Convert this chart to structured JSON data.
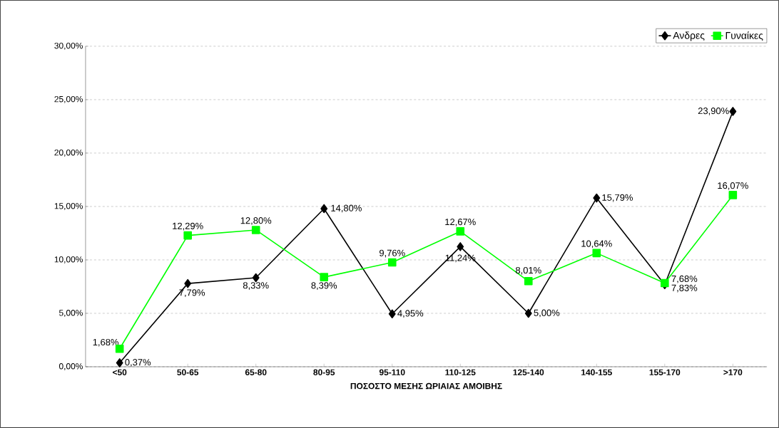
{
  "chart_data": {
    "type": "line",
    "xlabel": "ΠΟΣΟΣΤΟ ΜΕΣΗΣ ΩΡΙΑΙΑΣ ΑΜΟΙΒΗΣ",
    "categories": [
      "<50",
      "50-65",
      "65-80",
      "80-95",
      "95-110",
      "110-125",
      "125-140",
      "140-155",
      "155-170",
      ">170"
    ],
    "series": [
      {
        "name": "Ανδρες",
        "color": "#000000",
        "marker": "diamond",
        "values": [
          0.37,
          7.79,
          8.33,
          14.8,
          4.95,
          11.24,
          5.0,
          15.79,
          7.68,
          23.9
        ],
        "value_labels": [
          "0,37%",
          "7,79%",
          "8,33%",
          "14,80%",
          "4,95%",
          "11,24%",
          "5,00%",
          "15,79%",
          "7,68%",
          "23,90%"
        ]
      },
      {
        "name": "Γυναίκες",
        "color": "#00ff00",
        "marker": "square",
        "values": [
          1.68,
          12.29,
          12.8,
          8.39,
          9.76,
          12.67,
          8.01,
          10.64,
          7.83,
          16.07
        ],
        "value_labels": [
          "1,68%",
          "12,29%",
          "12,80%",
          "8,39%",
          "9,76%",
          "12,67%",
          "8,01%",
          "10,64%",
          "7,83%",
          "16,07%"
        ]
      }
    ],
    "ylim": [
      0,
      30
    ],
    "yticks": [
      {
        "value": 0,
        "label": "0,00%"
      },
      {
        "value": 5,
        "label": "5,00%"
      },
      {
        "value": 10,
        "label": "10,00%"
      },
      {
        "value": 15,
        "label": "15,00%"
      },
      {
        "value": 20,
        "label": "20,00%"
      },
      {
        "value": 25,
        "label": "25,00%"
      },
      {
        "value": 30,
        "label": "30,00%"
      }
    ],
    "grid": "y",
    "legend": "top right",
    "line_style": "solid"
  }
}
